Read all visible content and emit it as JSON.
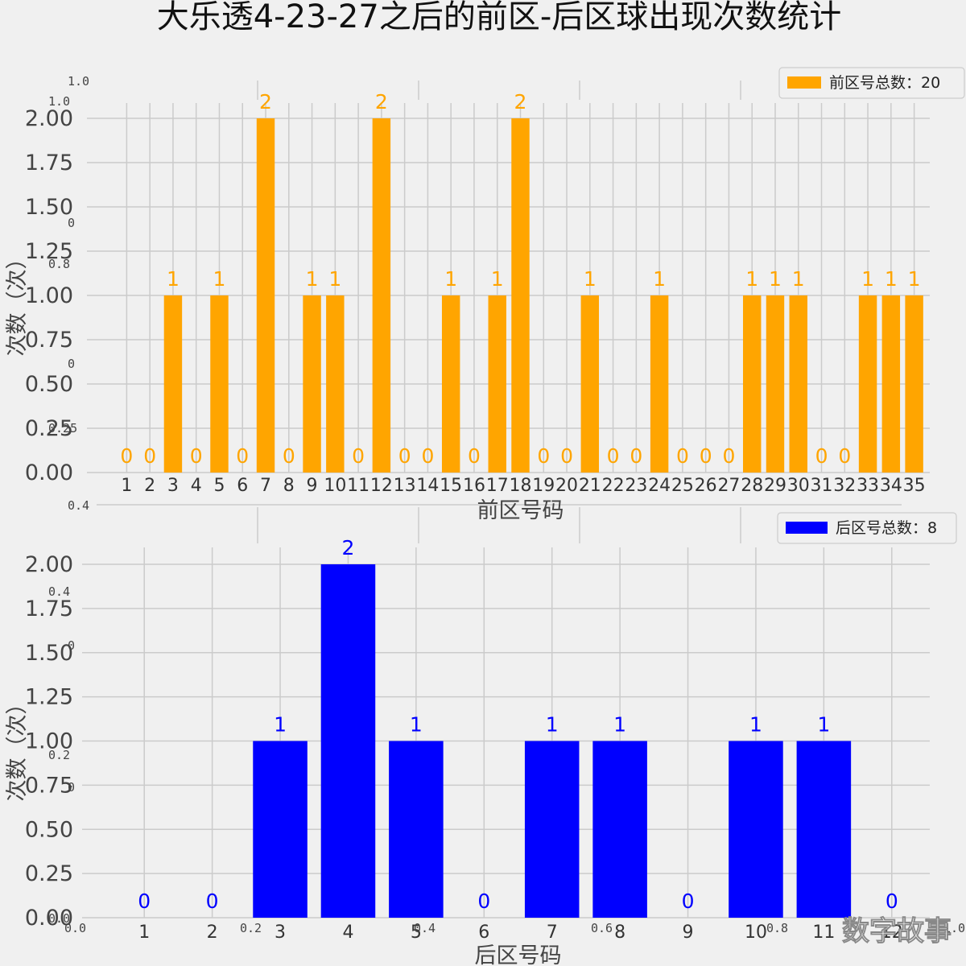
{
  "title": "大乐透4-23-27之后的前区-后区球出现次数统计",
  "watermark": "数字故事",
  "ghost_ticks": {
    "left": [
      "1.0",
      "1.0",
      "0",
      "0.8",
      "0",
      "0.25",
      "0.4",
      "0.4",
      "0",
      "0.2",
      "0",
      "0.0"
    ],
    "bottom": [
      "0.0",
      "0.2",
      "0.4",
      "0.6",
      "0.8",
      "1.0"
    ]
  },
  "chart_data": [
    {
      "type": "bar",
      "xlabel": "前区号码",
      "ylabel": "次数（次）",
      "ylim": [
        0,
        2.0
      ],
      "yticks": [
        "0.00",
        "0.25",
        "0.50",
        "0.75",
        "1.00",
        "1.25",
        "1.50",
        "1.75",
        "2.00"
      ],
      "categories": [
        "1",
        "2",
        "3",
        "4",
        "5",
        "6",
        "7",
        "8",
        "9",
        "10",
        "11",
        "12",
        "13",
        "14",
        "15",
        "16",
        "17",
        "18",
        "19",
        "20",
        "21",
        "22",
        "23",
        "24",
        "25",
        "26",
        "27",
        "28",
        "29",
        "30",
        "31",
        "32",
        "33",
        "34",
        "35"
      ],
      "values": [
        0,
        0,
        1,
        0,
        1,
        0,
        2,
        0,
        1,
        1,
        0,
        2,
        0,
        0,
        1,
        0,
        1,
        2,
        0,
        0,
        1,
        0,
        0,
        1,
        0,
        0,
        0,
        1,
        1,
        1,
        0,
        0,
        1,
        1,
        1
      ],
      "legend": "前区号总数：20",
      "legend_position": "top-right",
      "color": "#ffa500",
      "grid": true
    },
    {
      "type": "bar",
      "xlabel": "后区号码",
      "ylabel": "次数（次）",
      "ylim": [
        0,
        2.0
      ],
      "yticks": [
        "0.00",
        "0.25",
        "0.50",
        "0.75",
        "1.00",
        "1.25",
        "1.50",
        "1.75",
        "2.00"
      ],
      "categories": [
        "1",
        "2",
        "3",
        "4",
        "5",
        "6",
        "7",
        "8",
        "9",
        "10",
        "11",
        "12"
      ],
      "values": [
        0,
        0,
        1,
        2,
        1,
        0,
        1,
        1,
        0,
        1,
        1,
        0
      ],
      "legend": "后区号总数：8",
      "legend_position": "top-right",
      "color": "#0000ff",
      "grid": true
    }
  ]
}
